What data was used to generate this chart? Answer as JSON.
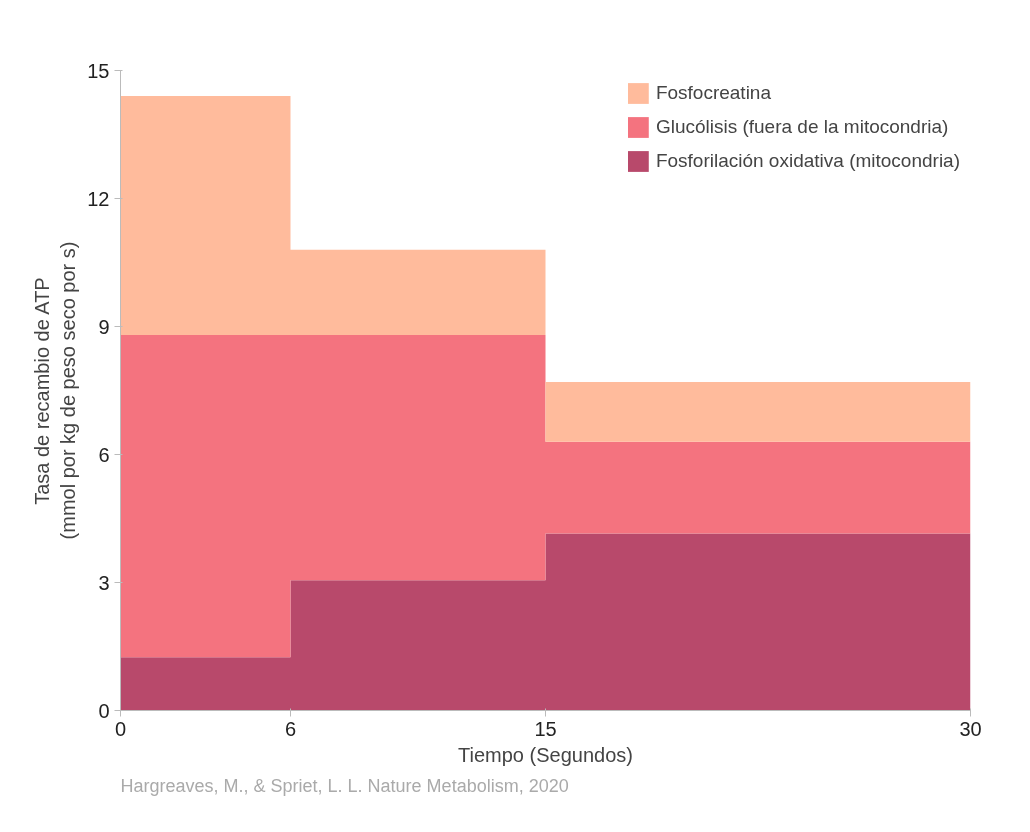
{
  "chart_data": {
    "type": "area",
    "stacked": true,
    "x": [
      0,
      6,
      6,
      15,
      15,
      30
    ],
    "series": [
      {
        "name": "Fosforilación oxidativa (mitocondria)",
        "color": "#b8496b",
        "values": [
          1.25,
          1.25,
          3.05,
          3.05,
          4.15,
          4.15
        ]
      },
      {
        "name": "Glucólisis (fuera de la mitocondria)",
        "color": "#f4737f",
        "values": [
          7.55,
          7.55,
          5.75,
          5.75,
          2.15,
          2.15
        ]
      },
      {
        "name": "Fosfocreatina",
        "color": "#ffbb9c",
        "values": [
          5.6,
          5.6,
          2.0,
          2.0,
          1.4,
          1.4
        ]
      }
    ],
    "xlim": [
      0,
      30
    ],
    "xticks": [
      0,
      6,
      15,
      30
    ],
    "ylim": [
      0,
      15
    ],
    "yticks": [
      0,
      3,
      6,
      9,
      12,
      15
    ],
    "xlabel": "Tiempo (Segundos)",
    "ylabel": "Tasa de recambio de ATP\n(mmol por kg de peso seco por s)",
    "legend": "top right",
    "grid": false,
    "annotations": [
      "Hargreaves, M., & Spriet, L. L. Nature Metabolism, 2020"
    ]
  }
}
